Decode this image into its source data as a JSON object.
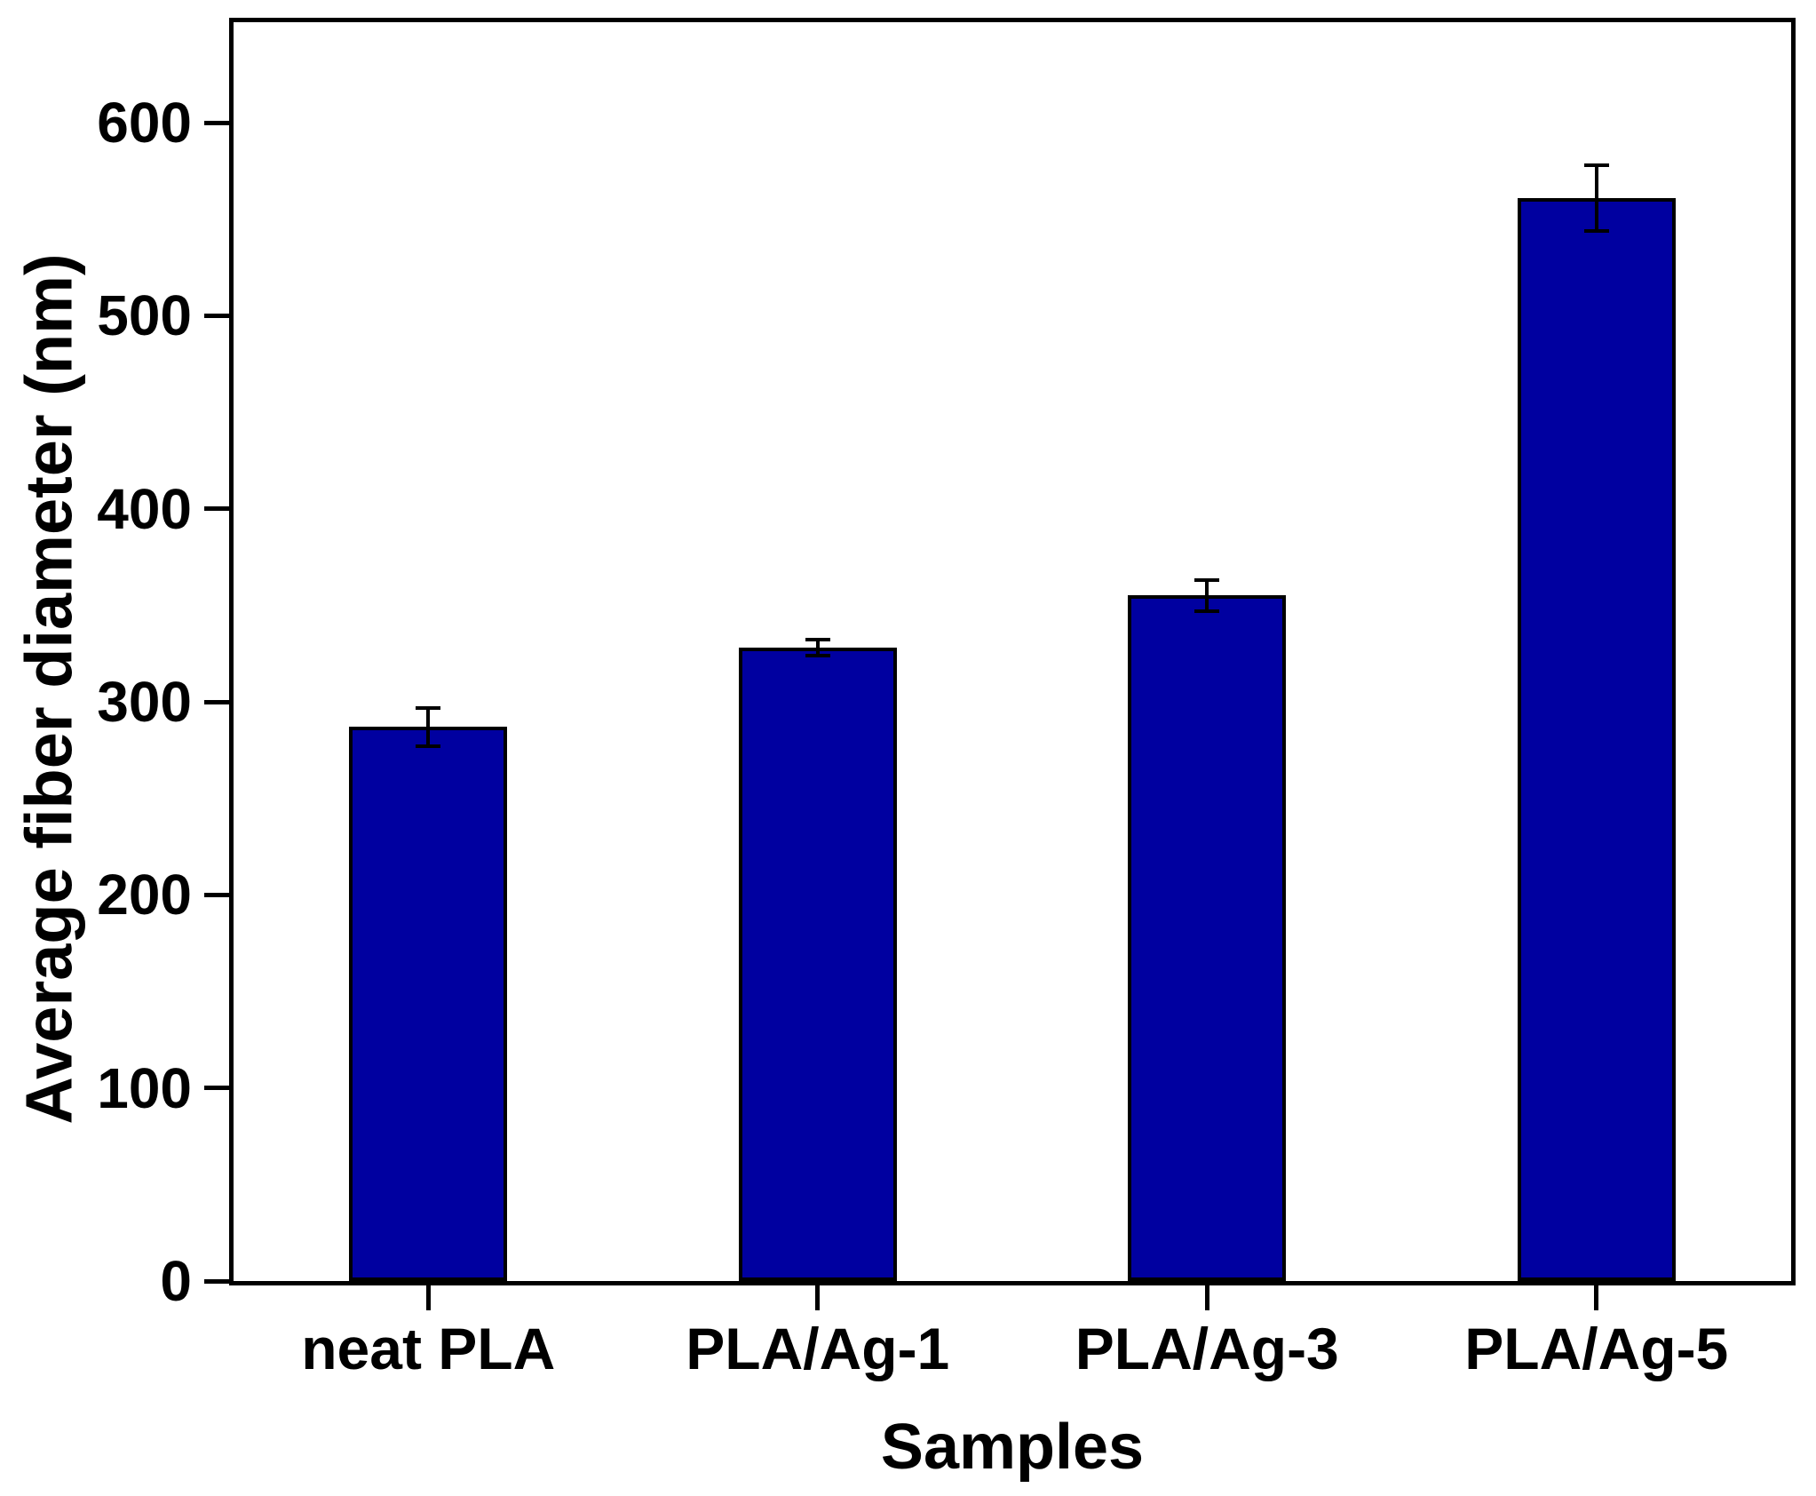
{
  "figure": {
    "background": "#ffffff"
  },
  "chart_data": {
    "type": "bar",
    "title": "",
    "categories": [
      "neat PLA",
      "PLA/Ag-1",
      "PLA/Ag-3",
      "PLA/Ag-5"
    ],
    "values": [
      287,
      328,
      355,
      561
    ],
    "errors": [
      10,
      4,
      8,
      17
    ],
    "xlabel": "Samples",
    "ylabel": "Average fiber diameter (nm)",
    "yticks": [
      0,
      100,
      200,
      300,
      400,
      500,
      600
    ],
    "ylim": [
      0,
      652
    ],
    "grid": false,
    "legend": "none",
    "error_bars": "plus-minus",
    "bar_color": "#0000A0",
    "bar_edge_color": "#000000",
    "error_color": "#000000",
    "axis_color": "#000000",
    "plot_border": "full-box",
    "tick_direction": "out"
  }
}
